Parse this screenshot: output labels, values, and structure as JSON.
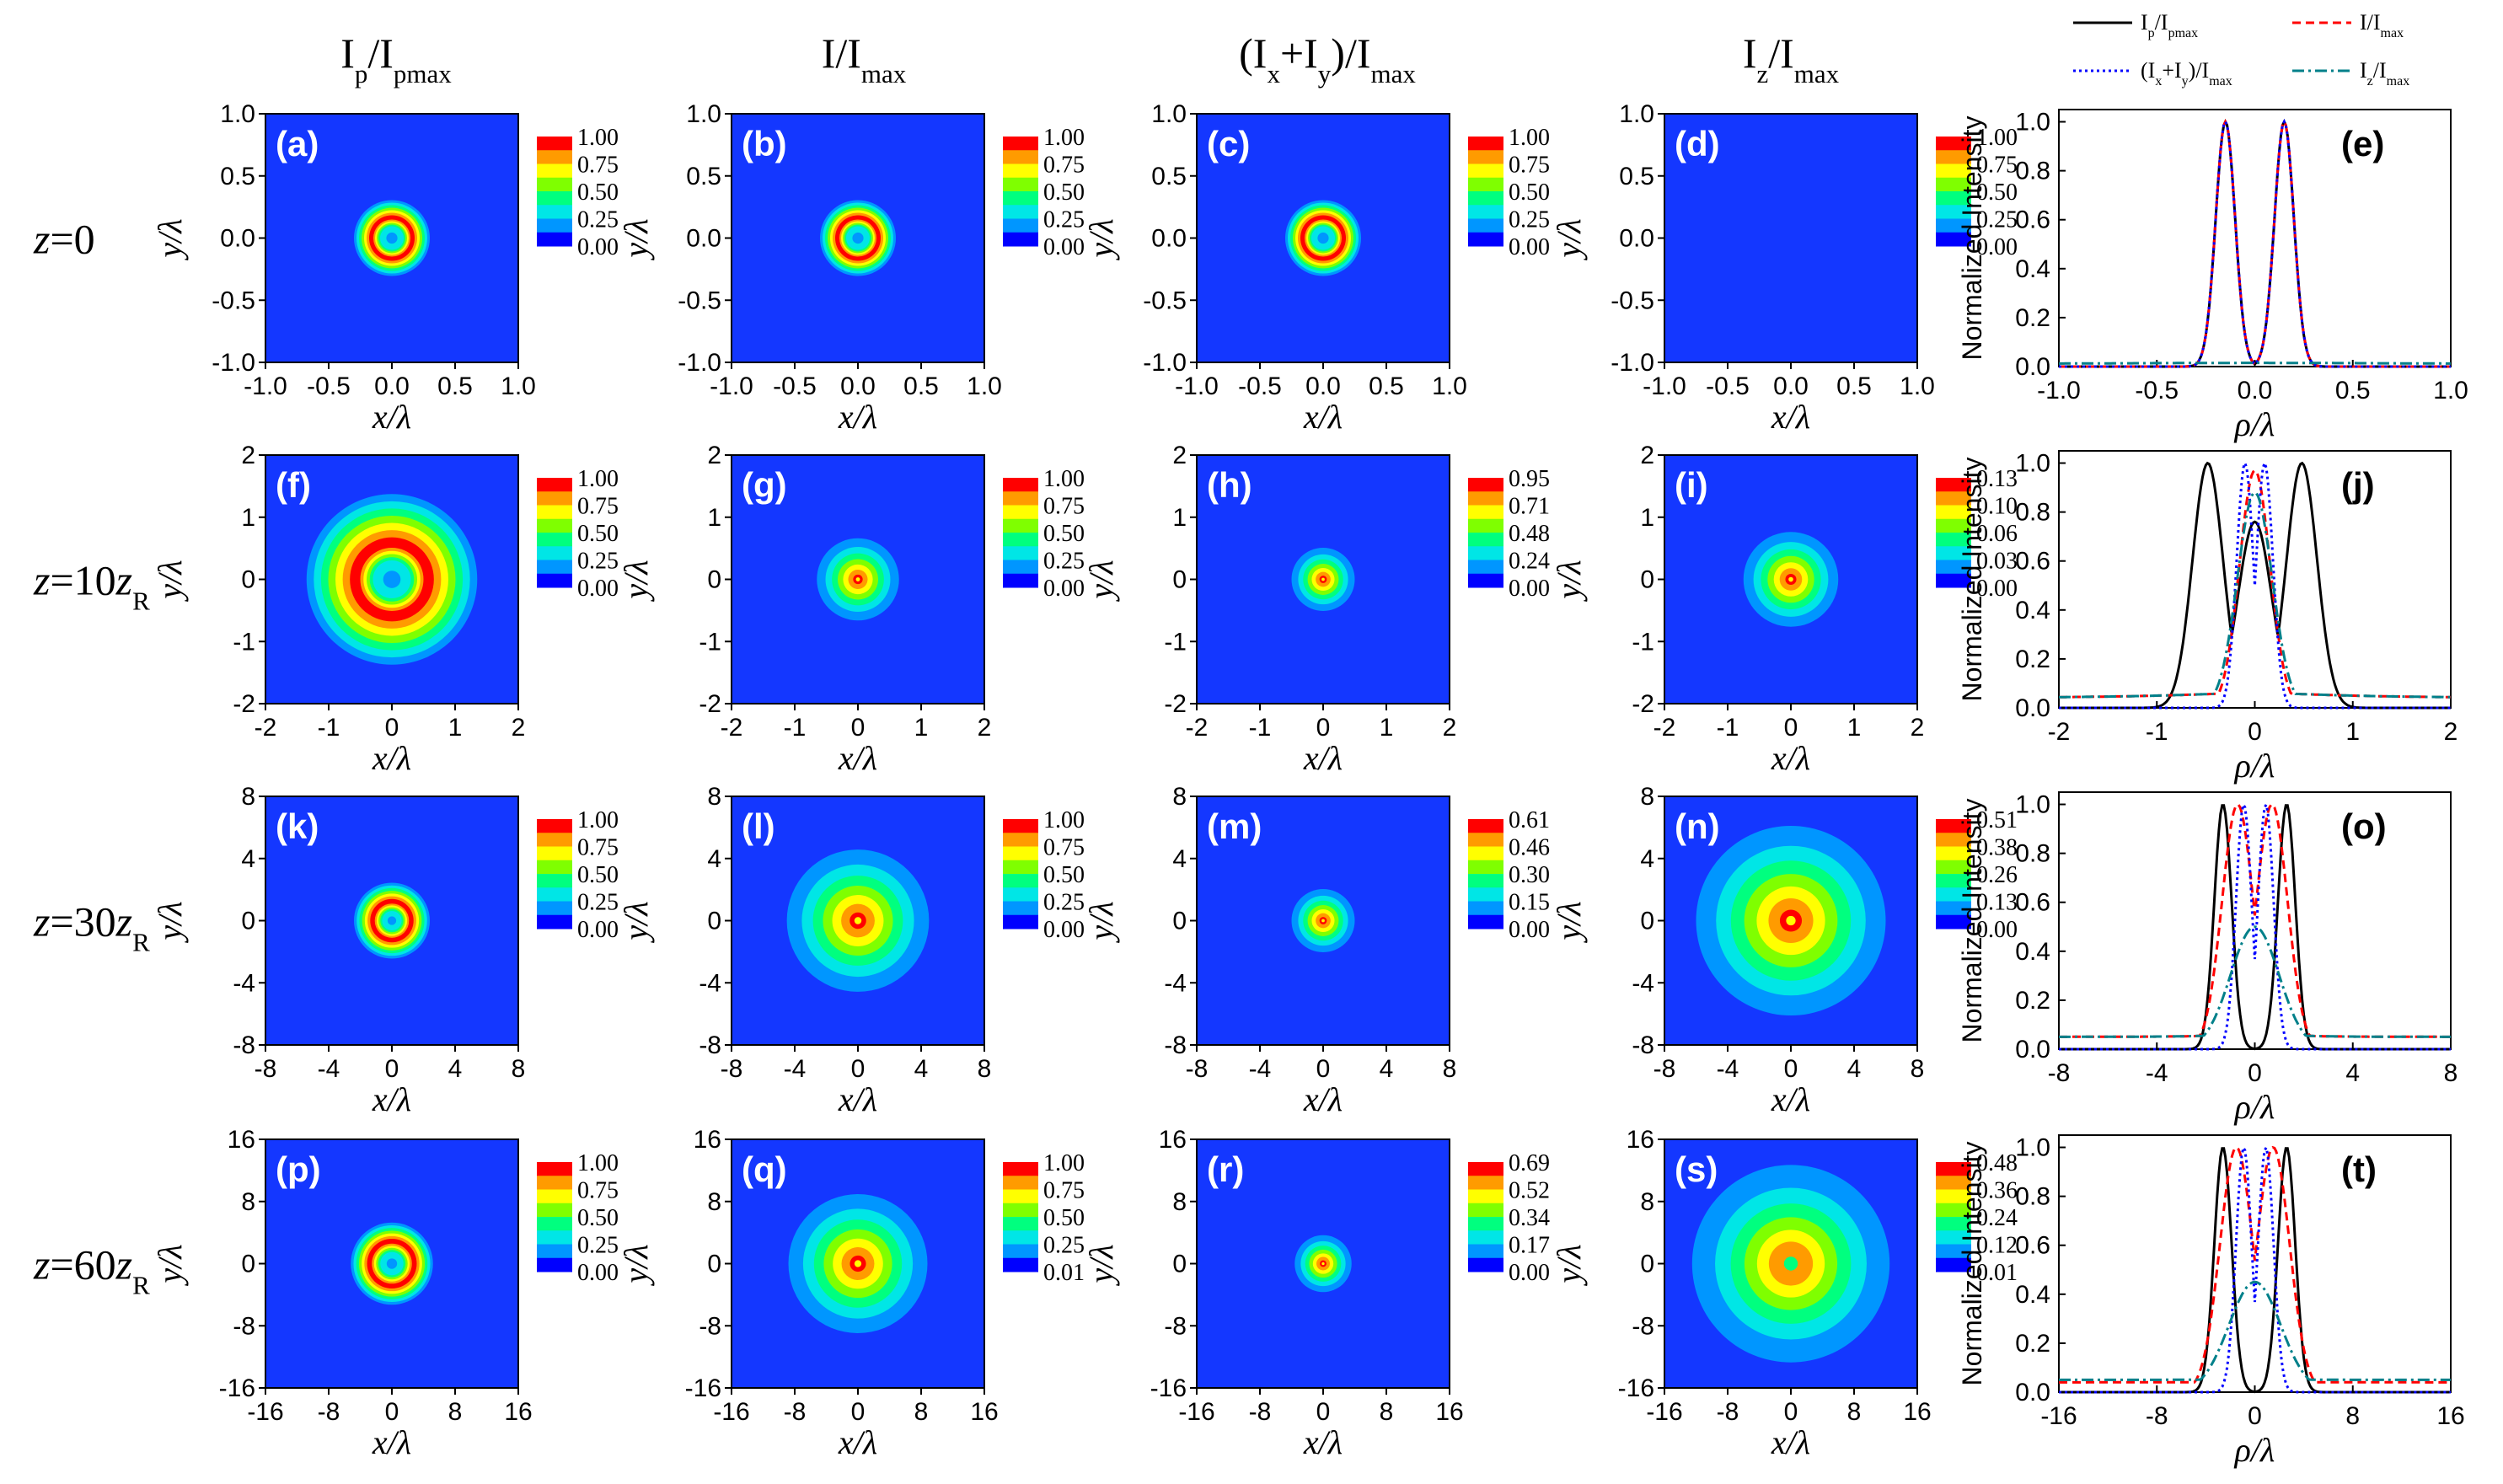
{
  "colors": {
    "background_field": "#1437ff",
    "palette": [
      "#0000ff",
      "#0096ff",
      "#00e6e6",
      "#00ff7f",
      "#7fff00",
      "#ffff00",
      "#ff9b00",
      "#ff0000"
    ],
    "line_Ip": "#000000",
    "line_I": "#ff0000",
    "line_Ixy": "#0000ff",
    "line_Iz": "#00808a"
  },
  "headers": {
    "columns": [
      {
        "main": "I",
        "sub": "p",
        "slash": "/",
        "main2": "I",
        "sub2": "pmax"
      },
      {
        "main": "I/I",
        "sub": "max"
      },
      {
        "main": "(I",
        "sub": "x",
        "mid": "+I",
        "sub_b": "y",
        "tail": ")/I",
        "sub2": "max"
      },
      {
        "main": "I",
        "sub": "z",
        "slash": "/",
        "main2": "I",
        "sub2": "max"
      }
    ],
    "rows": [
      {
        "pre": "z",
        "eq": "=0",
        "num": "",
        "post": "",
        "sub": ""
      },
      {
        "pre": "z",
        "eq": "=10",
        "num": "",
        "post": "z",
        "sub": "R"
      },
      {
        "pre": "z",
        "eq": "=30",
        "num": "",
        "post": "z",
        "sub": "R"
      },
      {
        "pre": "z",
        "eq": "=60",
        "num": "",
        "post": "z",
        "sub": "R"
      }
    ]
  },
  "legend": {
    "entries": [
      {
        "text": "I",
        "sub": "p",
        "text2": "/I",
        "sub2": "pmax",
        "key": "Ip"
      },
      {
        "text": "I/I",
        "sub": "max",
        "text2": "",
        "sub2": "",
        "key": "I"
      },
      {
        "text": "(I",
        "sub": "x",
        "text2": "+I",
        "sub2": "y",
        "text3": ")/I",
        "sub3": "max",
        "key": "Ixy"
      },
      {
        "text": "I",
        "sub": "z",
        "text2": "/I",
        "sub2": "max",
        "key": "Iz"
      }
    ]
  },
  "axes": {
    "x_label": "x/λ",
    "y_label": "y/λ",
    "rho_label": "ρ/λ",
    "profile_ylabel": "Normalized Intensity"
  },
  "chart_data": [
    {
      "type": "heatmap",
      "row": 0,
      "rows": [
        {
          "range": 1,
          "ticks": [
            "-1.0",
            "-0.5",
            "0.0",
            "0.5",
            "1.0"
          ],
          "tick_values": [
            -1,
            -0.5,
            0,
            0.5,
            1
          ]
        },
        {
          "range": 2,
          "ticks": [
            "-2",
            "-1",
            "0",
            "1",
            "2"
          ],
          "tick_values": [
            -2,
            -1,
            0,
            1,
            2
          ]
        },
        {
          "range": 8,
          "ticks": [
            "-8",
            "-4",
            "0",
            "4",
            "8"
          ],
          "tick_values": [
            -8,
            -4,
            0,
            4,
            8
          ]
        },
        {
          "range": 16,
          "ticks": [
            "-16",
            "-8",
            "0",
            "8",
            "16"
          ],
          "tick_values": [
            -16,
            -8,
            0,
            8,
            16
          ]
        }
      ]
    },
    {
      "type": "heatmap",
      "panels": [
        {
          "label": "(a)",
          "row": 0,
          "col": 0,
          "shape": "ring",
          "r_inner": 0.08,
          "r_peak": 0.16,
          "r_outer": 0.3,
          "colorbar": [
            "1.00",
            "0.75",
            "0.50",
            "0.25",
            "0.00"
          ]
        },
        {
          "label": "(b)",
          "row": 0,
          "col": 1,
          "shape": "ring",
          "r_inner": 0.08,
          "r_peak": 0.16,
          "r_outer": 0.3,
          "colorbar": [
            "1.00",
            "0.75",
            "0.50",
            "0.25",
            "0.00"
          ]
        },
        {
          "label": "(c)",
          "row": 0,
          "col": 2,
          "shape": "ring",
          "r_inner": 0.08,
          "r_peak": 0.16,
          "r_outer": 0.3,
          "colorbar": [
            "1.00",
            "0.75",
            "0.50",
            "0.25",
            "0.00"
          ]
        },
        {
          "label": "(d)",
          "row": 0,
          "col": 3,
          "shape": "none",
          "colorbar": [
            "1.00",
            "0.75",
            "0.50",
            "0.25",
            "0.00"
          ]
        },
        {
          "label": "(f)",
          "row": 1,
          "col": 0,
          "shape": "ring",
          "r_inner": 0.25,
          "r_peak": 0.55,
          "r_outer": 1.35,
          "colorbar": [
            "1.00",
            "0.75",
            "0.50",
            "0.25",
            "0.00"
          ]
        },
        {
          "label": "(g)",
          "row": 1,
          "col": 1,
          "shape": "peak",
          "r_outer": 0.65,
          "colorbar": [
            "1.00",
            "0.75",
            "0.50",
            "0.25",
            "0.00"
          ]
        },
        {
          "label": "(h)",
          "row": 1,
          "col": 2,
          "shape": "peak",
          "r_outer": 0.5,
          "colorbar": [
            "0.95",
            "0.71",
            "0.48",
            "0.24",
            "0.00"
          ]
        },
        {
          "label": "(i)",
          "row": 1,
          "col": 3,
          "shape": "peak",
          "r_outer": 0.75,
          "colorbar": [
            "0.13",
            "0.10",
            "0.06",
            "0.03",
            "0.00"
          ]
        },
        {
          "label": "(k)",
          "row": 2,
          "col": 0,
          "shape": "ring",
          "r_inner": 0.5,
          "r_peak": 1.2,
          "r_outer": 2.4,
          "colorbar": [
            "1.00",
            "0.75",
            "0.50",
            "0.25",
            "0.00"
          ]
        },
        {
          "label": "(l)",
          "row": 2,
          "col": 1,
          "shape": "peak",
          "r_outer": 4.5,
          "colorbar": [
            "1.00",
            "0.75",
            "0.50",
            "0.25",
            "0.00"
          ]
        },
        {
          "label": "(m)",
          "row": 2,
          "col": 2,
          "shape": "peak",
          "r_outer": 2.0,
          "colorbar": [
            "0.61",
            "0.46",
            "0.30",
            "0.15",
            "0.00"
          ]
        },
        {
          "label": "(n)",
          "row": 2,
          "col": 3,
          "shape": "peak",
          "r_outer": 6.0,
          "colorbar": [
            "0.51",
            "0.38",
            "0.26",
            "0.13",
            "0.00"
          ]
        },
        {
          "label": "(p)",
          "row": 3,
          "col": 0,
          "shape": "ring",
          "r_inner": 1.2,
          "r_peak": 2.8,
          "r_outer": 5.2,
          "colorbar": [
            "1.00",
            "0.75",
            "0.50",
            "0.25",
            "0.00"
          ]
        },
        {
          "label": "(q)",
          "row": 3,
          "col": 1,
          "shape": "peak",
          "r_outer": 8.8,
          "colorbar": [
            "1.00",
            "0.75",
            "0.50",
            "0.25",
            "0.01"
          ]
        },
        {
          "label": "(r)",
          "row": 3,
          "col": 2,
          "shape": "peak",
          "r_outer": 3.6,
          "colorbar": [
            "0.69",
            "0.52",
            "0.34",
            "0.17",
            "0.00"
          ]
        },
        {
          "label": "(s)",
          "row": 3,
          "col": 3,
          "shape": "ringpeak",
          "r_outer": 12.5,
          "colorbar": [
            "0.48",
            "0.36",
            "0.24",
            "0.12",
            "0.01"
          ]
        }
      ]
    },
    {
      "type": "line",
      "panels": [
        {
          "label": "(e)",
          "row": 0,
          "xlim": [
            -1,
            1
          ],
          "ylim": [
            0,
            1.05
          ],
          "yticks": [
            "0.0",
            "0.2",
            "0.4",
            "0.6",
            "0.8",
            "1.0"
          ],
          "series": [
            {
              "key": "Ip",
              "peak_pos": 0.15,
              "width": 0.07,
              "center": 0.0,
              "dip": 0.0,
              "tail": 0.0
            },
            {
              "key": "I",
              "peak_pos": 0.15,
              "width": 0.07,
              "center": 0.0,
              "dip": 0.0,
              "tail": 0.0
            },
            {
              "key": "Ixy",
              "peak_pos": 0.15,
              "width": 0.07,
              "center": 0.0,
              "dip": 0.0,
              "tail": 0.0
            },
            {
              "key": "Iz",
              "peak_pos": 0.0,
              "width": 0.0,
              "center": 0.01,
              "dip": 0.0,
              "tail": 0.01
            }
          ]
        },
        {
          "label": "(j)",
          "row": 1,
          "xlim": [
            -2,
            2
          ],
          "ylim": [
            0,
            1.05
          ],
          "yticks": [
            "0.0",
            "0.2",
            "0.4",
            "0.6",
            "0.8",
            "1.0"
          ],
          "series": [
            {
              "key": "Ip",
              "peak_pos": 0.48,
              "width": 0.22,
              "center": 0.76,
              "dip": 0.0,
              "tail": 0.0
            },
            {
              "key": "I",
              "peak_pos": 0.0,
              "width": 0.22,
              "center": 0.97,
              "dip": 0.0,
              "tail": 0.04
            },
            {
              "key": "Ixy",
              "peak_pos": 0.1,
              "width": 0.12,
              "center": 0.12,
              "dip": 0.0,
              "tail": 0.0
            },
            {
              "key": "Iz",
              "peak_pos": 0.0,
              "width": 0.25,
              "center": 0.88,
              "dip": 0.0,
              "tail": 0.04
            }
          ]
        },
        {
          "label": "(o)",
          "row": 2,
          "xlim": [
            -8,
            8
          ],
          "ylim": [
            0,
            1.05
          ],
          "yticks": [
            "0.0",
            "0.2",
            "0.4",
            "0.6",
            "0.8",
            "1.0"
          ],
          "series": [
            {
              "key": "Ip",
              "peak_pos": 1.3,
              "width": 0.5,
              "center": 0.0,
              "dip": 0.0,
              "tail": 0.0
            },
            {
              "key": "I",
              "peak_pos": 0.7,
              "width": 0.9,
              "center": 0.0,
              "dip": 0.0,
              "tail": 0.05
            },
            {
              "key": "Ixy",
              "peak_pos": 0.45,
              "width": 0.45,
              "center": 0.0,
              "dip": 0.0,
              "tail": 0.0
            },
            {
              "key": "Iz",
              "peak_pos": 0.0,
              "width": 1.4,
              "center": 0.5,
              "dip": 0.0,
              "tail": 0.05
            }
          ]
        },
        {
          "label": "(t)",
          "row": 3,
          "xlim": [
            -16,
            16
          ],
          "ylim": [
            0,
            1.05
          ],
          "yticks": [
            "0.0",
            "0.2",
            "0.4",
            "0.6",
            "0.8",
            "1.0"
          ],
          "series": [
            {
              "key": "Ip",
              "peak_pos": 2.6,
              "width": 1.0,
              "center": 0.0,
              "dip": 0.0,
              "tail": 0.0
            },
            {
              "key": "I",
              "peak_pos": 1.5,
              "width": 1.9,
              "center": 0.0,
              "dip": 0.0,
              "tail": 0.04
            },
            {
              "key": "Ixy",
              "peak_pos": 0.9,
              "width": 0.9,
              "center": 0.0,
              "dip": 0.0,
              "tail": 0.0
            },
            {
              "key": "Iz",
              "peak_pos": 0.0,
              "width": 3.0,
              "center": 0.45,
              "dip": 0.0,
              "tail": 0.05
            }
          ]
        }
      ]
    }
  ]
}
